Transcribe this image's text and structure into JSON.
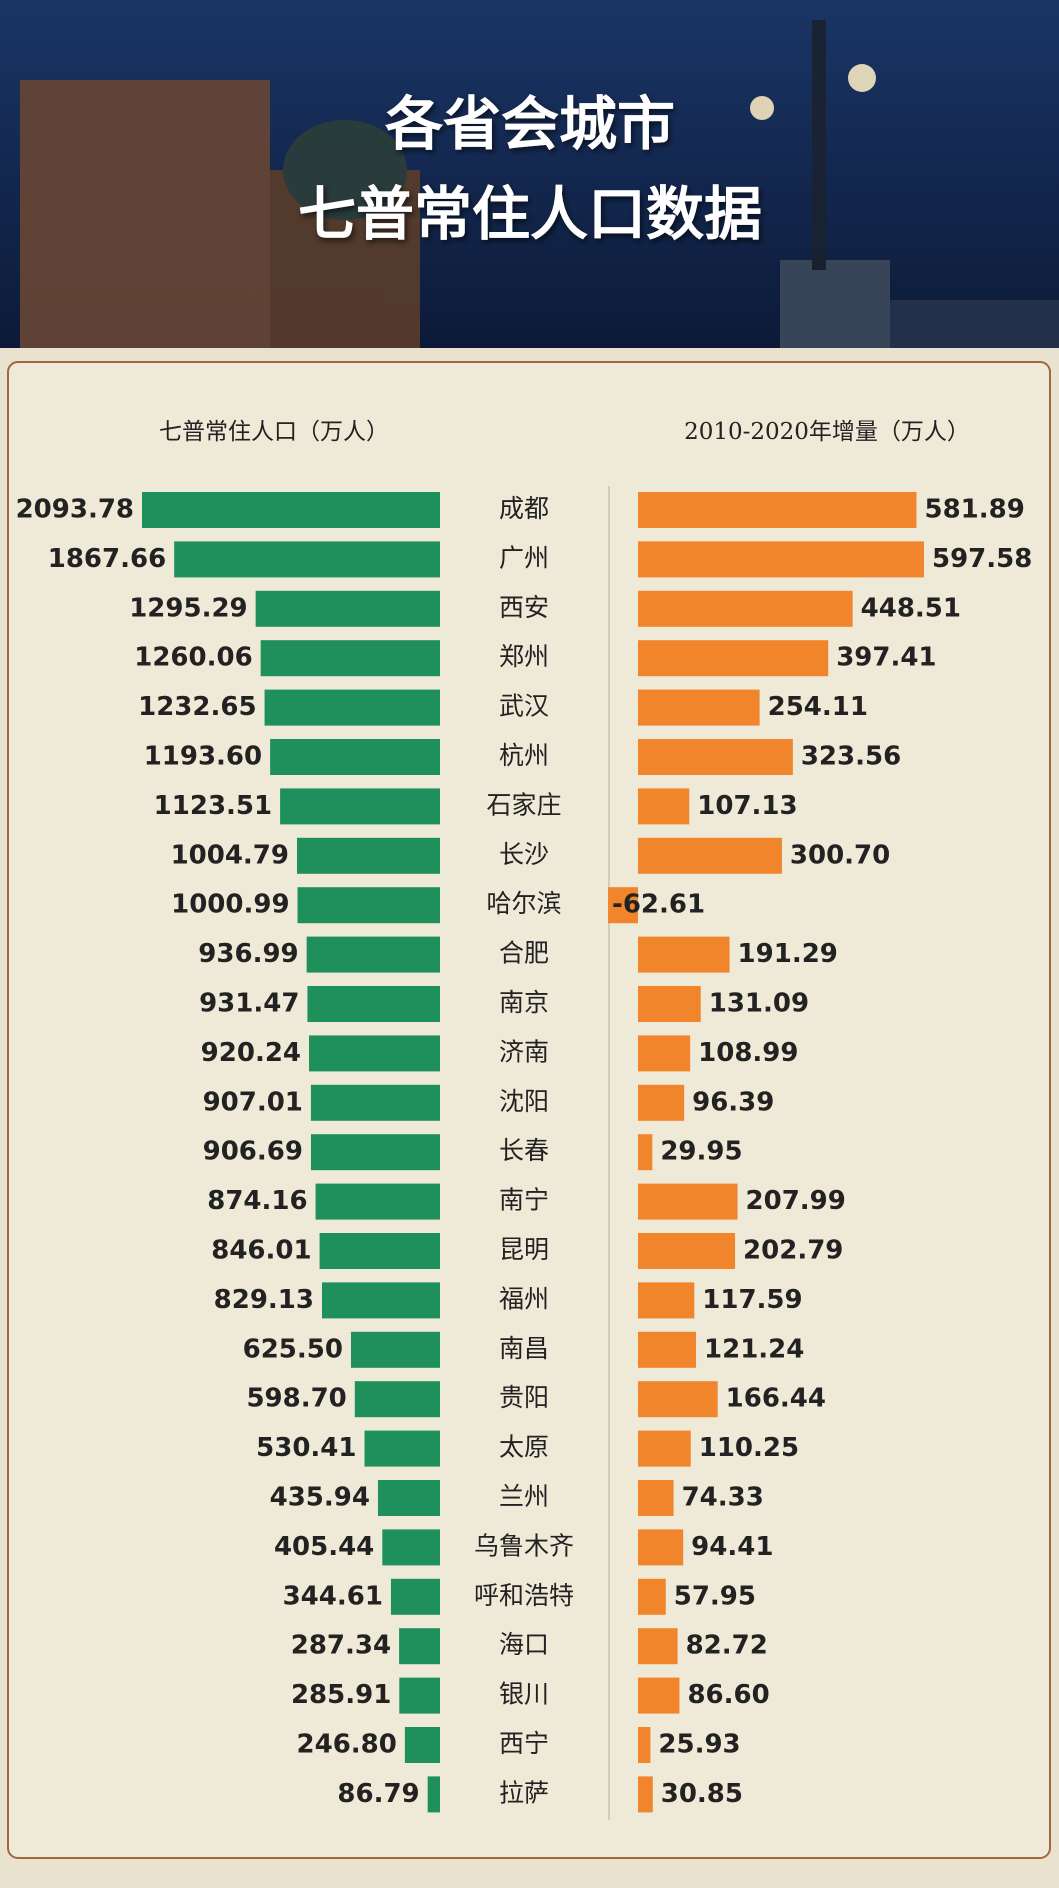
{
  "chart_data": {
    "type": "butterfly-bar",
    "title": "各省会城市",
    "subtitle": "七普常住人口数据",
    "categories": [
      "成都",
      "广州",
      "西安",
      "郑州",
      "武汉",
      "杭州",
      "石家庄",
      "长沙",
      "哈尔滨",
      "合肥",
      "南京",
      "济南",
      "沈阳",
      "长春",
      "南宁",
      "昆明",
      "福州",
      "南昌",
      "贵阳",
      "太原",
      "兰州",
      "乌鲁木齐",
      "呼和浩特",
      "海口",
      "银川",
      "西宁",
      "拉萨"
    ],
    "series": [
      {
        "name": "七普常住人口（万人）",
        "color": "#1f8f5c",
        "values": [
          2093.78,
          1867.66,
          1295.29,
          1260.06,
          1232.65,
          1193.6,
          1123.51,
          1004.79,
          1000.99,
          936.99,
          931.47,
          920.24,
          907.01,
          906.69,
          874.16,
          846.01,
          829.13,
          625.5,
          598.7,
          530.41,
          435.94,
          405.44,
          344.61,
          287.34,
          285.91,
          246.8,
          86.79
        ],
        "value_labels": [
          "2093.78",
          "1867.66",
          "1295.29",
          "1260.06",
          "1232.65",
          "1193.60",
          "1123.51",
          "1004.79",
          "1000.99",
          "936.99",
          "931.47",
          "920.24",
          "907.01",
          "906.69",
          "874.16",
          "846.01",
          "829.13",
          "625.50",
          "598.70",
          "530.41",
          "435.94",
          "405.44",
          "344.61",
          "287.34",
          "285.91",
          "246.80",
          "86.79"
        ]
      },
      {
        "name": "2010-2020年增量（万人）",
        "color": "#f0852b",
        "values": [
          581.89,
          597.58,
          448.51,
          397.41,
          254.11,
          323.56,
          107.13,
          300.7,
          -62.61,
          191.29,
          131.09,
          108.99,
          96.39,
          29.95,
          207.99,
          202.79,
          117.59,
          121.24,
          166.44,
          110.25,
          74.33,
          94.41,
          57.95,
          82.72,
          86.6,
          25.93,
          30.85
        ],
        "value_labels": [
          "581.89",
          "597.58",
          "448.51",
          "397.41",
          "254.11",
          "323.56",
          "107.13",
          "300.70",
          "-62.61",
          "191.29",
          "131.09",
          "108.99",
          "96.39",
          "29.95",
          "207.99",
          "202.79",
          "117.59",
          "121.24",
          "166.44",
          "110.25",
          "74.33",
          "94.41",
          "57.95",
          "82.72",
          "86.60",
          "25.93",
          "30.85"
        ]
      }
    ]
  }
}
